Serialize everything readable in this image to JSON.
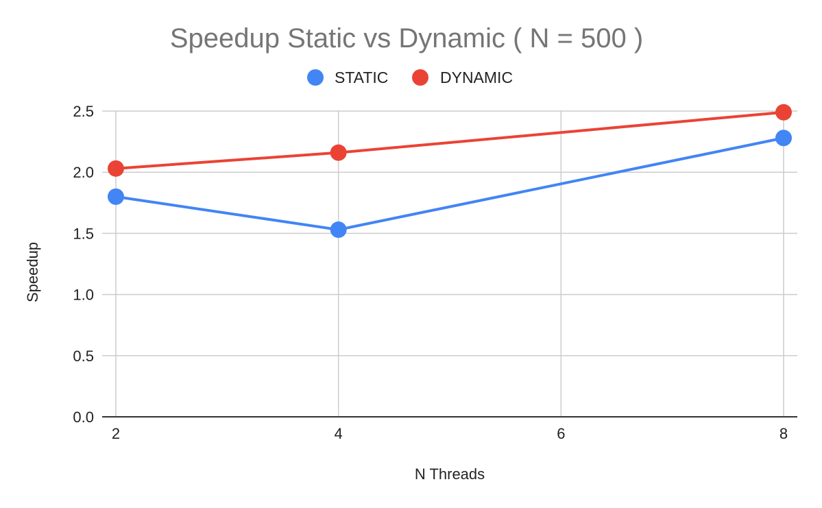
{
  "chart_data": {
    "type": "line",
    "title": "Speedup Static vs Dynamic ( N = 500 )",
    "xlabel": "N Threads",
    "ylabel": "Speedup",
    "x_ticks": [
      "2",
      "4",
      "6",
      "8"
    ],
    "y_ticks": [
      "0.0",
      "0.5",
      "1.0",
      "1.5",
      "2.0",
      "2.5"
    ],
    "xlim": [
      2,
      8
    ],
    "ylim": [
      0,
      2.5
    ],
    "grid": true,
    "legend_position": "top",
    "x": [
      2,
      4,
      8
    ],
    "series": [
      {
        "name": "STATIC",
        "color": "#4285f4",
        "values": [
          1.8,
          1.53,
          2.28
        ]
      },
      {
        "name": "DYNAMIC",
        "color": "#ea4335",
        "values": [
          2.03,
          2.16,
          2.49
        ]
      }
    ]
  }
}
